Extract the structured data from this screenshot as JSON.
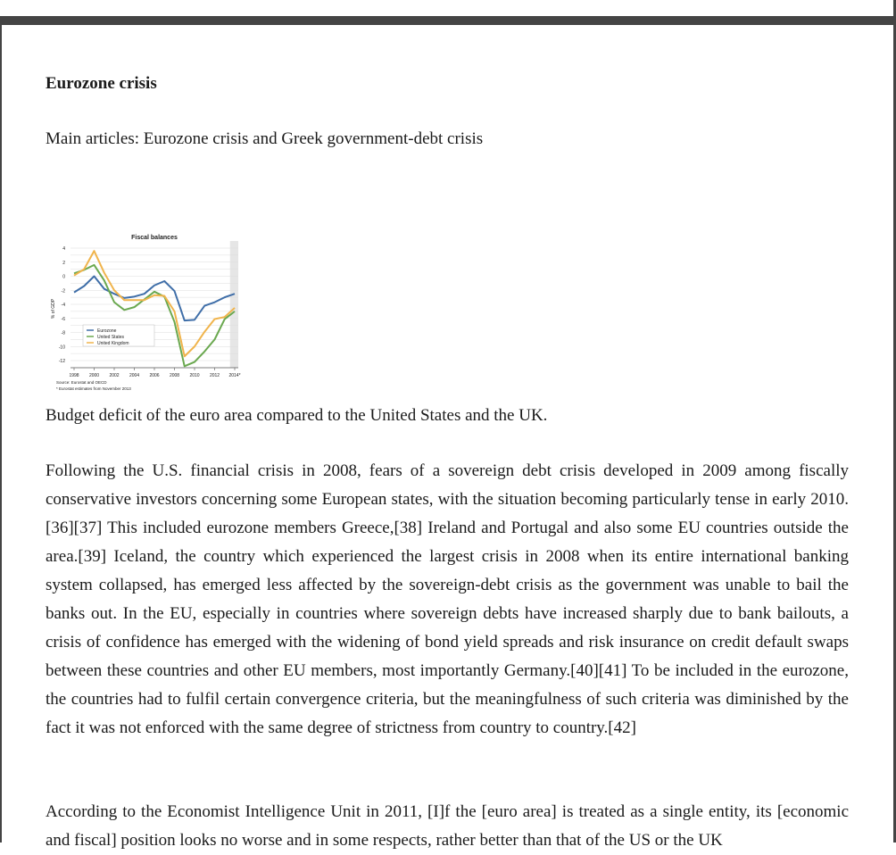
{
  "section": {
    "heading": "Eurozone crisis"
  },
  "hatnote": "Main articles: Eurozone crisis and Greek government-debt crisis",
  "figure": {
    "caption": "Budget deficit of the euro area compared to the United States and the UK."
  },
  "chart_data": {
    "type": "line",
    "title": "Fiscal balances",
    "ylabel": "% of GDP",
    "xlabel": "",
    "x": [
      1998,
      1999,
      2000,
      2001,
      2002,
      2003,
      2004,
      2005,
      2006,
      2007,
      2008,
      2009,
      2010,
      2011,
      2012,
      2013,
      2014
    ],
    "x_ticks": [
      "1998",
      "2000",
      "2002",
      "2004",
      "2006",
      "2008",
      "2010",
      "2012",
      "2014*"
    ],
    "y_ticks": [
      4,
      2,
      0,
      -2,
      -4,
      -6,
      -8,
      -10,
      -12
    ],
    "ylim": [
      -12,
      4
    ],
    "shaded_from": 2013,
    "grid": true,
    "legend_position": "bottom-left",
    "series": [
      {
        "name": "Eurozone",
        "color": "#3f6ea8",
        "values": [
          -2.3,
          -1.4,
          0.0,
          -1.8,
          -2.5,
          -3.1,
          -2.9,
          -2.5,
          -1.3,
          -0.7,
          -2.1,
          -6.3,
          -6.2,
          -4.2,
          -3.7,
          -3.0,
          -2.5
        ]
      },
      {
        "name": "United States",
        "color": "#6aa84f",
        "values": [
          0.4,
          0.9,
          1.6,
          -0.6,
          -3.7,
          -4.8,
          -4.4,
          -3.3,
          -2.2,
          -2.9,
          -6.5,
          -12.8,
          -12.2,
          -10.7,
          -9.0,
          -6.1,
          -5.0
        ]
      },
      {
        "name": "United Kingdom",
        "color": "#f0b44c",
        "values": [
          0.1,
          1.0,
          3.6,
          0.5,
          -2.0,
          -3.4,
          -3.4,
          -3.4,
          -2.7,
          -2.8,
          -5.0,
          -11.4,
          -10.0,
          -7.9,
          -6.1,
          -5.8,
          -4.5
        ]
      }
    ],
    "source": "Source: Eurostat and OECD",
    "note": "* Eurostat estimates from November 2013"
  },
  "paragraphs": [
    "Following the U.S. financial crisis in 2008, fears of a sovereign debt crisis developed in 2009 among fiscally conservative investors concerning some European states, with the situation becoming particularly tense in early 2010.[36][37] This included eurozone members Greece,[38] Ireland and Portugal and also some EU countries outside the area.[39] Iceland, the country which experienced the largest crisis in 2008 when its entire international banking system collapsed, has emerged less affected by the sovereign-debt crisis as the government was unable to bail the banks out. In the EU, especially in countries where sovereign debts have increased sharply due to bank bailouts, a crisis of confidence has emerged with the widening of bond yield spreads and risk insurance on credit default swaps between these countries and other EU members, most importantly Germany.[40][41] To be included in the eurozone, the countries had to fulfil certain convergence criteria, but the meaningfulness of such criteria was diminished by the fact it was not enforced with the same degree of strictness from country to country.[42]",
    "According to the Economist Intelligence Unit in 2011, [I]f the [euro area] is treated as a single entity, its [economic and fiscal] position looks no worse and in some respects, rather better than that of the US or the UK"
  ]
}
